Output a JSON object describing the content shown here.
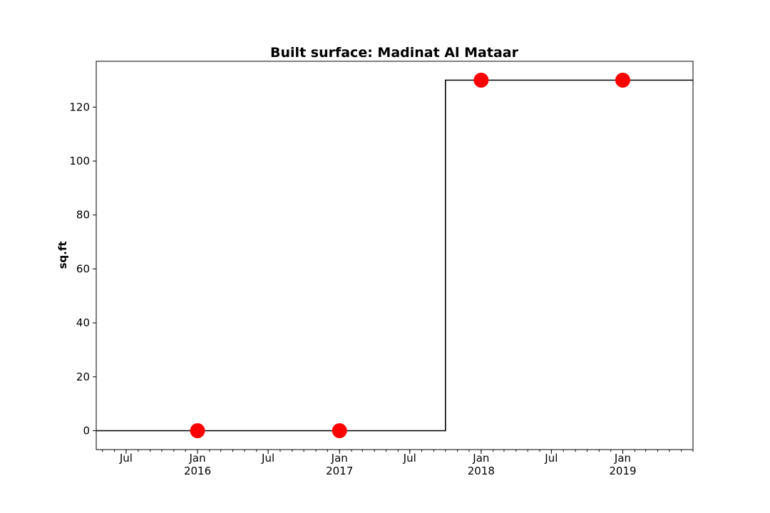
{
  "chart_data": {
    "type": "line",
    "title": "Built surface: Madinat Al Mataar",
    "xlabel": "",
    "ylabel": "sq.ft",
    "xlim": [
      "2015-04-15",
      "2019-07-01"
    ],
    "ylim": [
      -7,
      137
    ],
    "y_ticks": [
      0,
      20,
      40,
      60,
      80,
      100,
      120
    ],
    "x_major_ticks": [
      {
        "date": "2015-07-01",
        "label": "Jul",
        "year": ""
      },
      {
        "date": "2016-01-01",
        "label": "Jan",
        "year": "2016"
      },
      {
        "date": "2016-07-01",
        "label": "Jul",
        "year": ""
      },
      {
        "date": "2017-01-01",
        "label": "Jan",
        "year": "2017"
      },
      {
        "date": "2017-07-01",
        "label": "Jul",
        "year": ""
      },
      {
        "date": "2018-01-01",
        "label": "Jan",
        "year": "2018"
      },
      {
        "date": "2018-07-01",
        "label": "Jul",
        "year": ""
      },
      {
        "date": "2019-01-01",
        "label": "Jan",
        "year": "2019"
      }
    ],
    "x_minor_tick_interval": "month",
    "step_series": {
      "style": "step",
      "color": "#000000",
      "points": [
        {
          "x": "2015-04-15",
          "y": 0
        },
        {
          "x": "2017-10-01",
          "y": 0
        },
        {
          "x": "2017-10-01",
          "y": 130
        },
        {
          "x": "2019-07-01",
          "y": 130
        }
      ]
    },
    "marker_series": {
      "style": "scatter",
      "color": "#ff0000",
      "points": [
        {
          "x": "2016-01-01",
          "y": 0
        },
        {
          "x": "2017-01-01",
          "y": 0
        },
        {
          "x": "2018-01-01",
          "y": 130
        },
        {
          "x": "2019-01-01",
          "y": 130
        }
      ]
    },
    "grid": false,
    "legend": "none"
  }
}
